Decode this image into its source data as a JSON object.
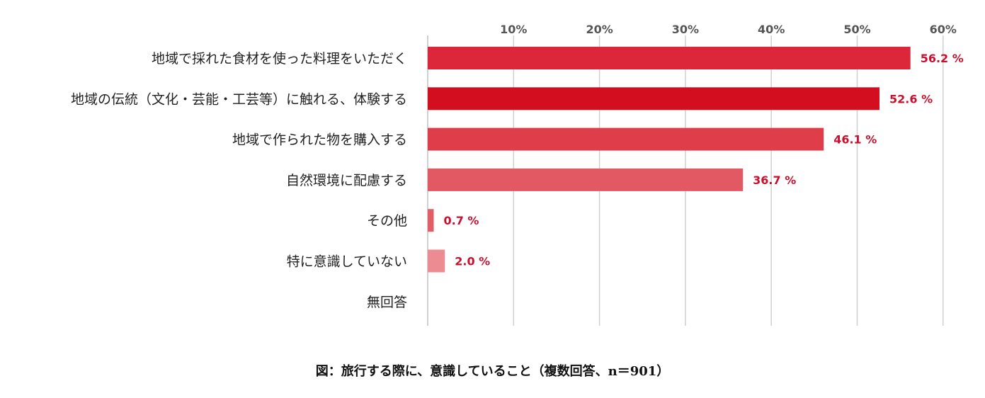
{
  "chart_data": {
    "type": "bar",
    "orientation": "horizontal",
    "categories": [
      "地域で採れた食材を使った料理をいただく",
      "地域の伝統（文化・芸能・工芸等）に触れる、体験する",
      "地域で作られた物を購入する",
      "自然環境に配慮する",
      "その他",
      "特に意識していない",
      "無回答"
    ],
    "values": [
      56.2,
      52.6,
      46.1,
      36.7,
      0.7,
      2.0,
      null
    ],
    "value_labels": [
      "56.2 %",
      "52.6 %",
      "46.1 %",
      "36.7 %",
      "0.7 %",
      "2.0 %",
      ""
    ],
    "bar_colors": [
      "#dc2639",
      "#d30e1f",
      "#df3d4a",
      "#e25963",
      "#e35d68",
      "#ec8b92",
      "#ffffff"
    ],
    "x_ticks": [
      10,
      20,
      30,
      40,
      50,
      60
    ],
    "x_tick_labels": [
      "10%",
      "20%",
      "30%",
      "40%",
      "50%",
      "60%"
    ],
    "xlim": [
      0,
      60
    ],
    "axis_position": "top",
    "grid": true
  },
  "caption": "図：旅行する際に、意識していること（複数回答、n＝901）"
}
